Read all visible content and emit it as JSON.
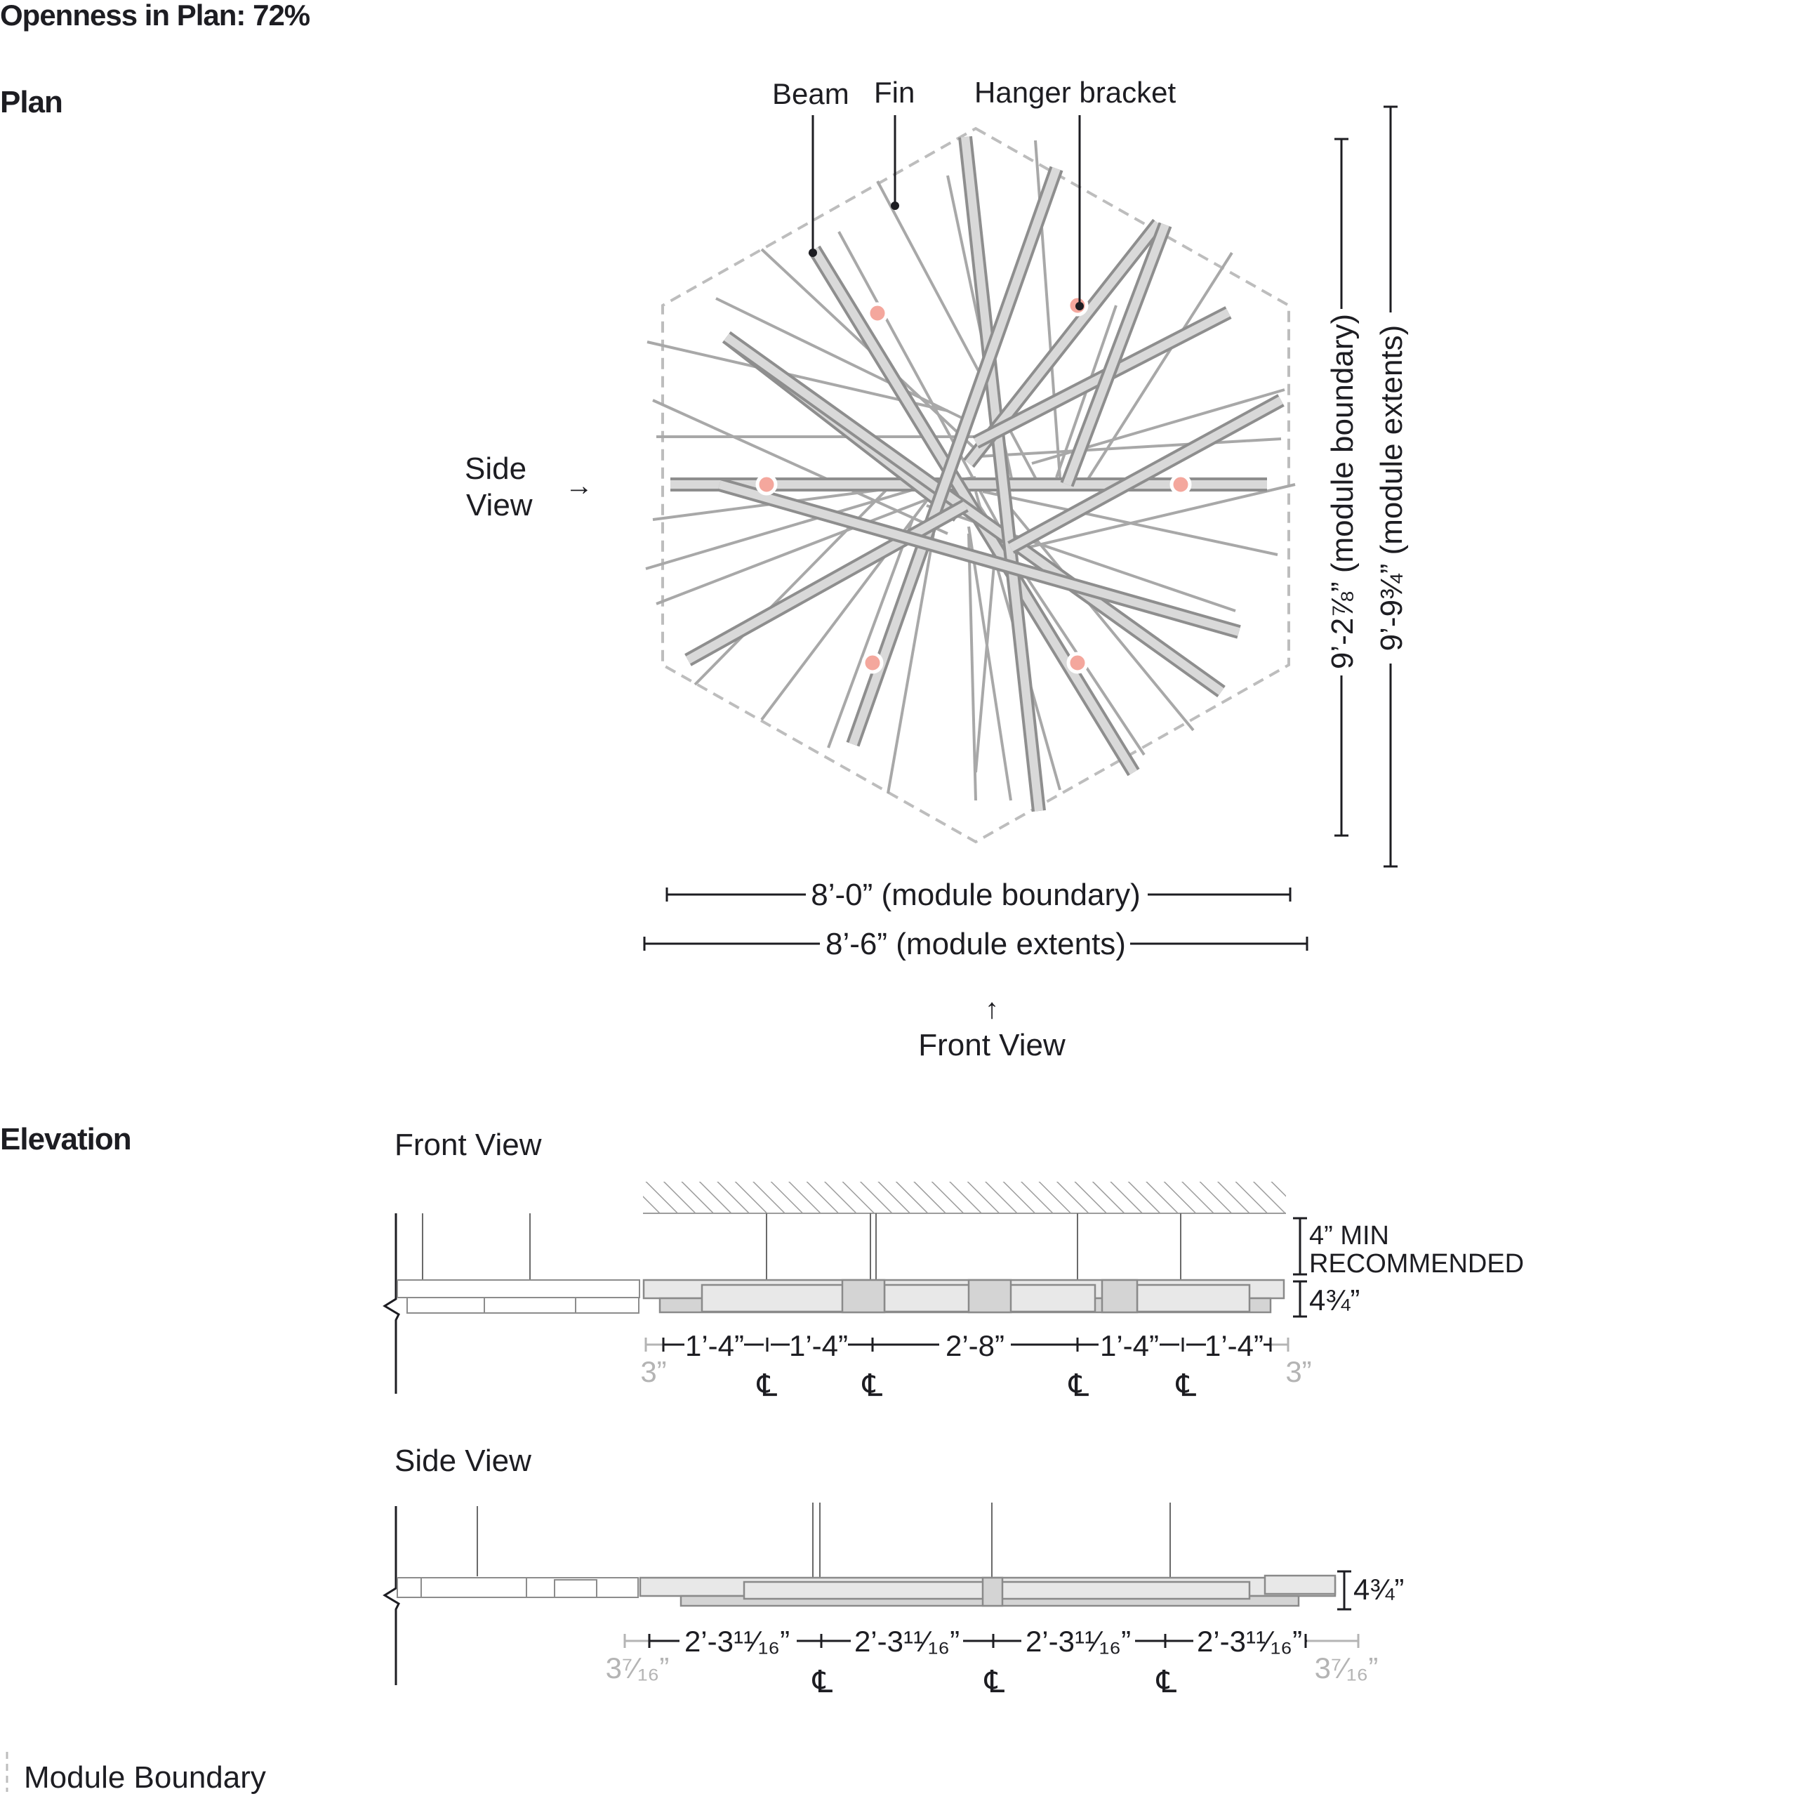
{
  "title": "Openness in Plan: 72%",
  "sections": {
    "plan": "Plan",
    "elevation": "Elevation"
  },
  "plan": {
    "callouts": {
      "beam": "Beam",
      "fin": "Fin",
      "hanger": "Hanger bracket"
    },
    "side_view_line1": "Side",
    "side_view_line2": "View",
    "side_arrow": "→",
    "front_arrow": "↑",
    "front_view": "Front View",
    "dims": {
      "width_boundary": "8’-0” (module boundary)",
      "width_extents": "8’-6” (module extents)",
      "height_boundary": "9’-2⅞” (module boundary)",
      "height_extents": "9’-9¾” (module extents)"
    }
  },
  "front_view": {
    "label": "Front View",
    "clearance_line1": "4” MIN",
    "clearance_line2": "RECOMMENDED",
    "depth": "4¾”",
    "edge_left": "3”",
    "edge_right": "3”",
    "spacings": [
      "1’-4”",
      "1’-4”",
      "2’-8”",
      "1’-4”",
      "1’-4”"
    ],
    "centerline": "℄"
  },
  "side_view": {
    "label": "Side View",
    "depth": "4¾”",
    "edge_left": "3⁷⁄₁₆”",
    "edge_right": "3⁷⁄₁₆”",
    "spacings": [
      "2’-3¹¹⁄₁₆”",
      "2’-3¹¹⁄₁₆”",
      "2’-3¹¹⁄₁₆”",
      "2’-3¹¹⁄₁₆”"
    ],
    "centerline": "℄"
  },
  "legend": {
    "module_boundary": "Module Boundary"
  },
  "colors": {
    "bracket": "#f4a79d",
    "beam": "#8e8e8e",
    "fin": "#a8a8a8",
    "boundary": "#bdbdbd"
  }
}
